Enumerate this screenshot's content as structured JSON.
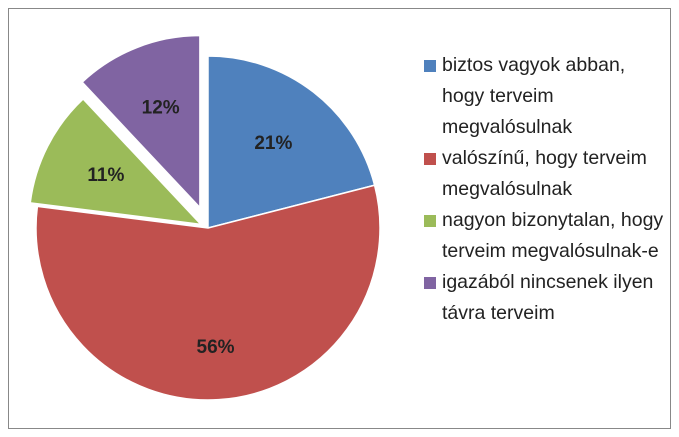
{
  "chart_data": {
    "type": "pie",
    "categories": [
      "biztos vagyok abban, hogy terveim megvalósulnak",
      "valószínű, hogy terveim megvalósulnak",
      "nagyon bizonytalan, hogy terveim megvalósulnak-e",
      "igazából nincsenek ilyen távra terveim"
    ],
    "values": [
      21,
      56,
      11,
      12
    ],
    "value_labels": [
      "21%",
      "56%",
      "11%",
      "12%"
    ],
    "colors": [
      "#4f81bd",
      "#c0504d",
      "#9bbb59",
      "#8064a2"
    ],
    "legend": "right"
  }
}
